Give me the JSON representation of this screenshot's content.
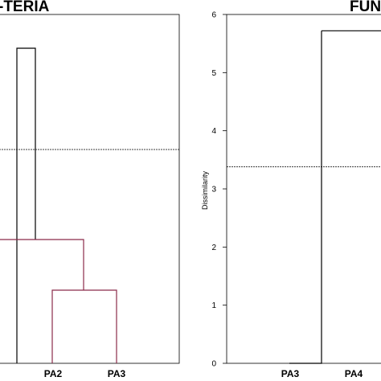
{
  "chart_data": [
    {
      "type": "dendrogram",
      "title": "BACTERIA",
      "title_visible": "-TERIA",
      "xlabel": "",
      "ylabel": "",
      "leaves": [
        "PA2",
        "PA3"
      ],
      "truncation_line": 3.8,
      "links": [
        {
          "x": [
            21,
            21,
            44,
            44
          ],
          "y": [
            0,
            5.6,
            5.6,
            2.2
          ],
          "color": "#000000"
        },
        {
          "x": [
            -15,
            -15,
            104,
            104
          ],
          "y": [
            0,
            2.2,
            2.2,
            1.3
          ],
          "color": "#8b2b4a"
        },
        {
          "x": [
            65,
            65,
            145,
            145
          ],
          "y": [
            0,
            1.3,
            1.3,
            0
          ],
          "color": "#8b2b4a"
        }
      ],
      "ylim": [
        0,
        6.2
      ]
    },
    {
      "type": "dendrogram",
      "title": "FUNGI",
      "title_visible": "FUN",
      "xlabel": "",
      "ylabel": "Dissimilarity",
      "yticks": [
        "0",
        "1",
        "2",
        "3",
        "4",
        "5",
        "6"
      ],
      "ylim": [
        0,
        6
      ],
      "leaves": [
        "PA3",
        "PA4"
      ],
      "truncation_line": 3.38,
      "links": [
        {
          "x": [
            360,
            360,
            400,
            400
          ],
          "y": [
            0,
            0,
            0,
            5.72
          ],
          "color": "#000000"
        },
        {
          "x": [
            400,
            400,
            480,
            480
          ],
          "y": [
            5.72,
            5.72,
            5.72,
            0
          ],
          "color": "#000000"
        }
      ]
    }
  ]
}
